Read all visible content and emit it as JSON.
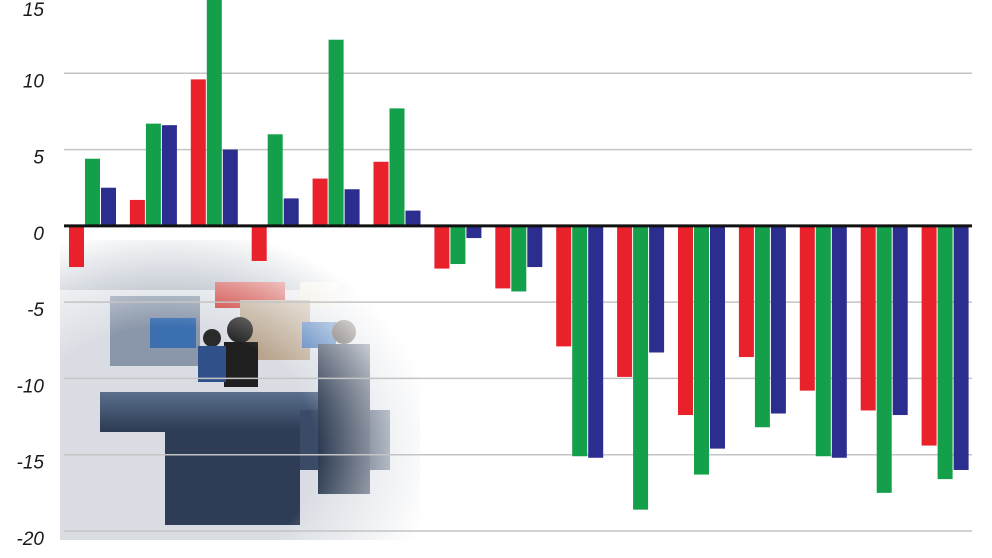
{
  "chart_data": {
    "type": "bar",
    "title": "",
    "xlabel": "",
    "ylabel": "",
    "ylim": [
      -20,
      15
    ],
    "yticks": [
      15,
      10,
      5,
      0,
      -5,
      -10,
      -15,
      -20
    ],
    "ytick_labels": [
      "15",
      "10",
      "5",
      "0",
      "-5",
      "-10",
      "-15",
      "-20"
    ],
    "grid": true,
    "legend": "none",
    "categories": [
      "",
      "",
      "",
      "",
      "",
      "",
      "",
      "",
      "",
      "",
      "",
      "",
      "",
      "",
      ""
    ],
    "series": [
      {
        "color": "#e8212b",
        "values": [
          -2.7,
          1.7,
          9.6,
          -2.3,
          3.1,
          4.2,
          -2.8,
          -4.1,
          -7.9,
          -9.9,
          -12.4,
          -8.6,
          -10.8,
          -12.1,
          -14.4
        ]
      },
      {
        "color": "#14a04a",
        "values": [
          4.4,
          6.7,
          15.2,
          6.0,
          12.2,
          7.7,
          -2.5,
          -4.3,
          -15.1,
          -18.6,
          -16.3,
          -13.2,
          -15.1,
          -17.5,
          -16.6
        ]
      },
      {
        "color": "#2b2e8e",
        "values": [
          2.5,
          6.6,
          5.0,
          1.8,
          2.4,
          1.0,
          -0.8,
          -2.7,
          -15.2,
          -8.3,
          -14.6,
          -12.3,
          -15.2,
          -12.4,
          -16.0
        ]
      }
    ]
  },
  "colors": {
    "grid": "#c4c4c4",
    "zero_line": "#111111"
  },
  "background_photo": "supermarket-checkout"
}
